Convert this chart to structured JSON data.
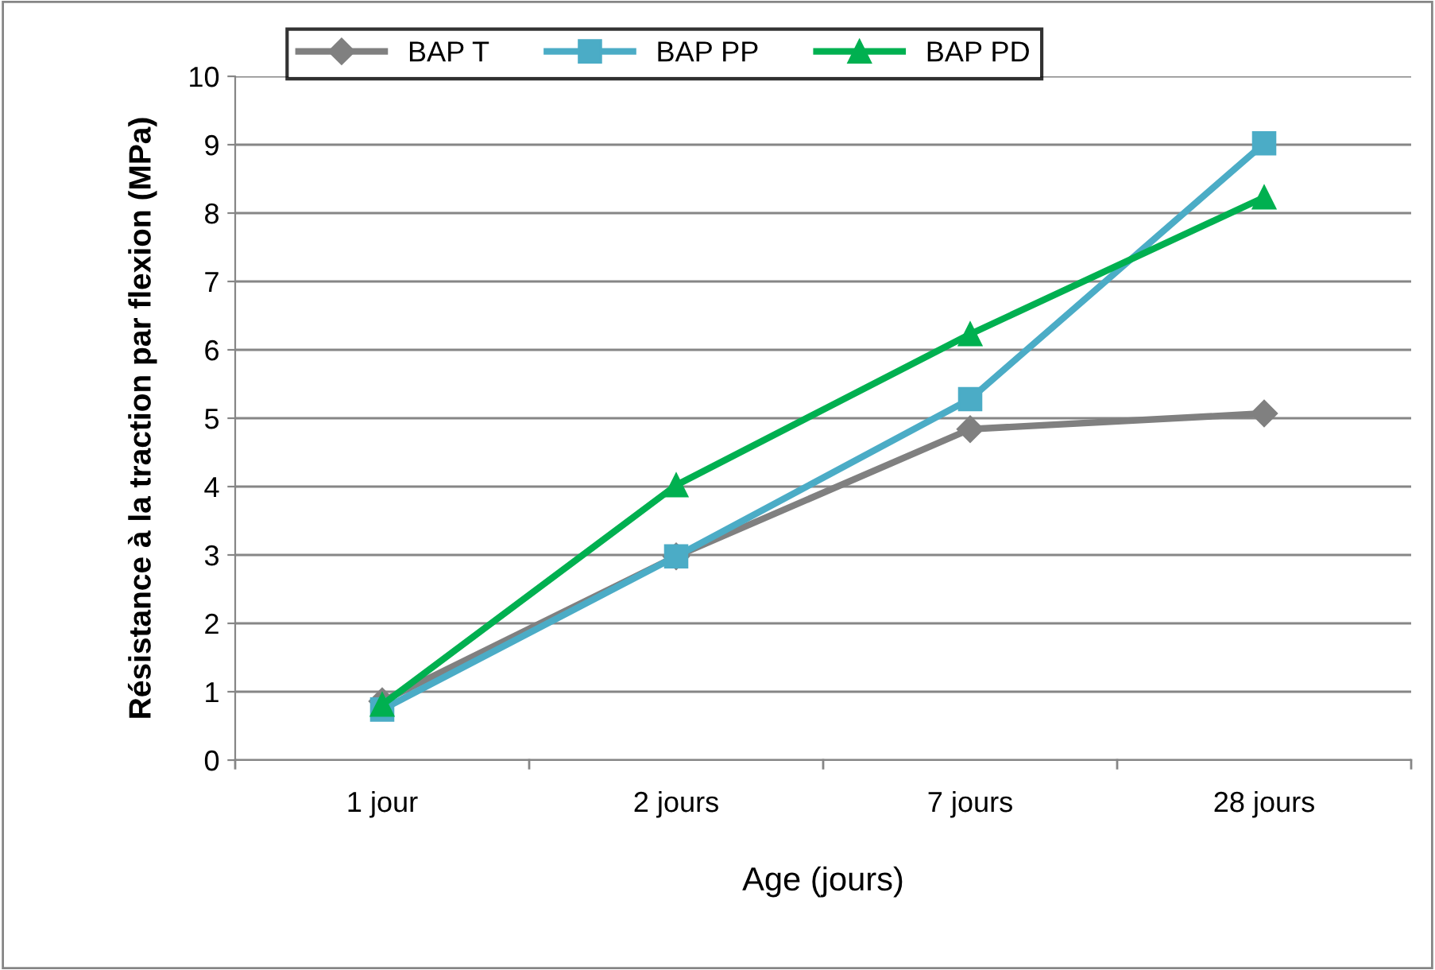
{
  "chart_data": {
    "type": "line",
    "xlabel": "Age (jours)",
    "ylabel": "Résistance à la traction par flexion (MPa)",
    "categories": [
      "1 jour",
      "2 jours",
      "7 jours",
      "28 jours"
    ],
    "series": [
      {
        "name": "BAP T",
        "color": "#808080",
        "marker": "diamond",
        "values": [
          0.86,
          2.98,
          4.84,
          5.07
        ]
      },
      {
        "name": "BAP PP",
        "color": "#4bacc6",
        "marker": "square",
        "values": [
          0.74,
          2.98,
          5.28,
          9.02
        ]
      },
      {
        "name": "BAP PD",
        "color": "#00b050",
        "marker": "triangle",
        "values": [
          0.81,
          4.02,
          6.23,
          8.23
        ]
      }
    ],
    "ylim": [
      0,
      10
    ],
    "yticks": [
      0,
      1,
      2,
      3,
      4,
      5,
      6,
      7,
      8,
      9,
      10
    ],
    "grid": "y",
    "legend": "top",
    "line_style": "solid"
  }
}
